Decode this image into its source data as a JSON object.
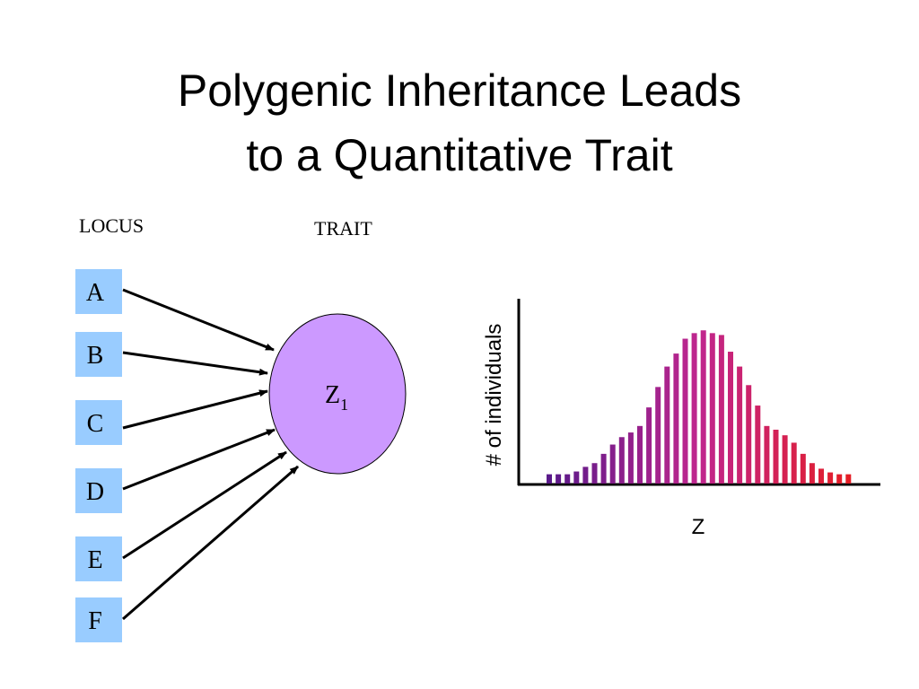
{
  "title_lines": [
    "Polygenic Inheritance Leads",
    "to a Quantitative Trait"
  ],
  "diagram": {
    "locus_label": "LOCUS",
    "trait_label": "TRAIT",
    "loci": [
      "A",
      "B",
      "C",
      "D",
      "E",
      "F"
    ],
    "trait": {
      "label": "Z",
      "subscript": "1"
    }
  },
  "chart_data": {
    "type": "bar",
    "x_label": "Z",
    "y_label": "# of individuals",
    "categories": [
      null,
      null,
      null,
      null,
      null,
      null,
      null,
      null,
      null,
      null,
      null,
      null,
      null,
      null,
      null,
      null,
      null,
      null,
      null,
      null,
      null,
      null,
      null,
      null,
      null,
      null,
      null,
      null,
      null,
      null,
      null,
      null,
      null,
      null
    ],
    "values": [
      10,
      10,
      10,
      13,
      18,
      22,
      32,
      42,
      50,
      55,
      62,
      82,
      104,
      126,
      140,
      156,
      162,
      165,
      162,
      160,
      142,
      126,
      106,
      84,
      62,
      58,
      52,
      44,
      32,
      22,
      16,
      12,
      10,
      10
    ],
    "ylim": [
      0,
      200
    ],
    "color_stops": [
      "#5a1a8a",
      "#c0268e",
      "#e41e26"
    ]
  }
}
